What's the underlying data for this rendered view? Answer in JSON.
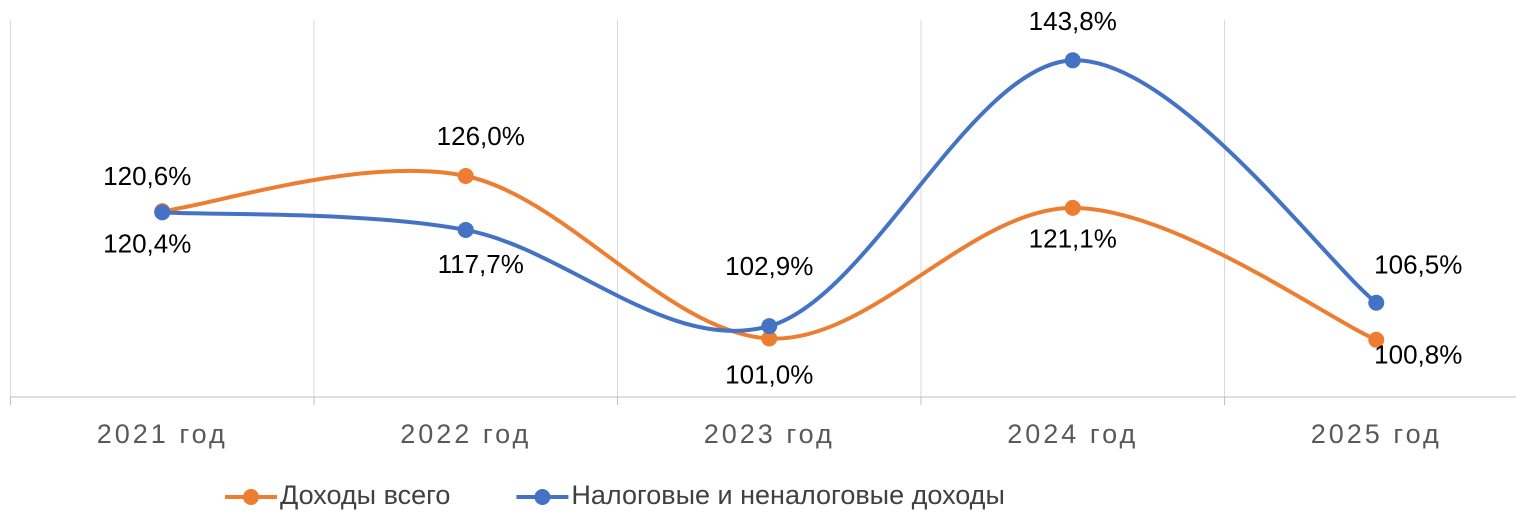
{
  "chart_data": {
    "type": "line",
    "categories": [
      "2021 год",
      "2022 год",
      "2023 год",
      "2024 год",
      "2025 год"
    ],
    "series": [
      {
        "name": "Доходы всего",
        "color": "#ed7d31",
        "values": [
          120.6,
          126.0,
          101.0,
          121.1,
          100.8
        ],
        "value_labels": [
          "120,6%",
          "126,0%",
          "101,0%",
          "121,1%",
          "100,8%"
        ]
      },
      {
        "name": "Налоговые и неналоговые доходы",
        "color": "#4472c4",
        "values": [
          120.4,
          117.7,
          102.9,
          143.8,
          106.5
        ],
        "value_labels": [
          "120,4%",
          "117,7%",
          "102,9%",
          "143,8%",
          "106,5%"
        ]
      }
    ],
    "ylim": [
      92,
      150
    ],
    "smooth": true,
    "legend": "bottom"
  }
}
